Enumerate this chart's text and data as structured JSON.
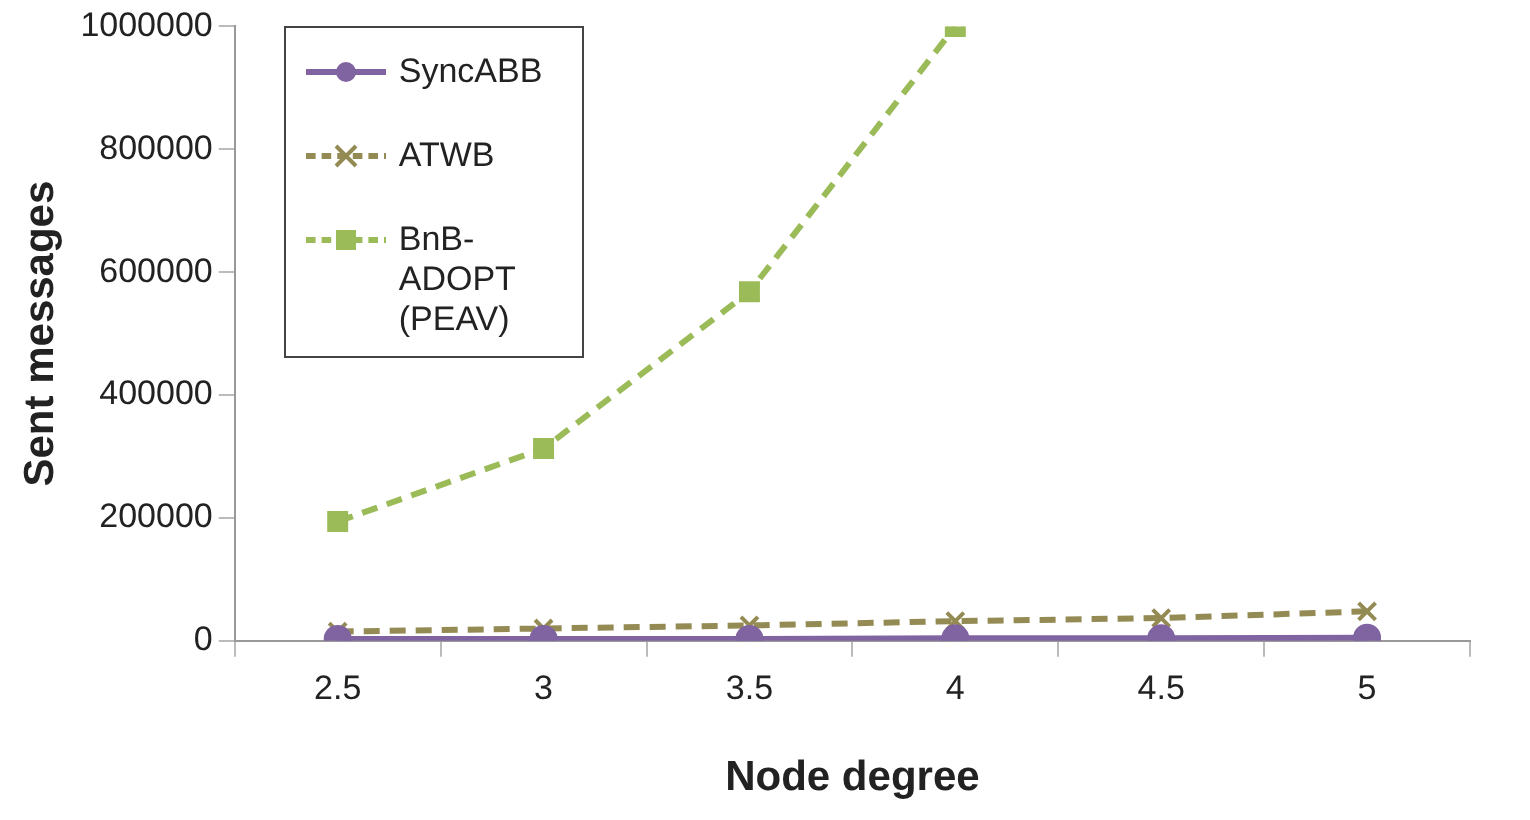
{
  "chart_data": {
    "type": "line",
    "xlabel": "Node degree",
    "ylabel": "Sent messages",
    "categories": [
      "2.5",
      "3",
      "3.5",
      "4",
      "4.5",
      "5"
    ],
    "ylim": [
      0,
      1000000
    ],
    "yticks": [
      0,
      200000,
      400000,
      600000,
      800000,
      1000000
    ],
    "grid": false,
    "legend": "top left",
    "series": [
      {
        "name": "SyncABB",
        "color": "#8064a2",
        "marker": "circle",
        "line_style": "solid",
        "values": [
          3000,
          3000,
          3000,
          4000,
          4000,
          5000
        ]
      },
      {
        "name": "ATWB",
        "color": "#948a54",
        "marker": "cross",
        "line_style": "dashed",
        "values": [
          15000,
          20000,
          25000,
          32000,
          37000,
          48000
        ]
      },
      {
        "name": "BnB-ADOPT (PEAV)",
        "color": "#9bbb59",
        "marker": "square",
        "line_style": "dashed",
        "values": [
          194000,
          313000,
          568000,
          1000000,
          null,
          null
        ]
      }
    ]
  }
}
